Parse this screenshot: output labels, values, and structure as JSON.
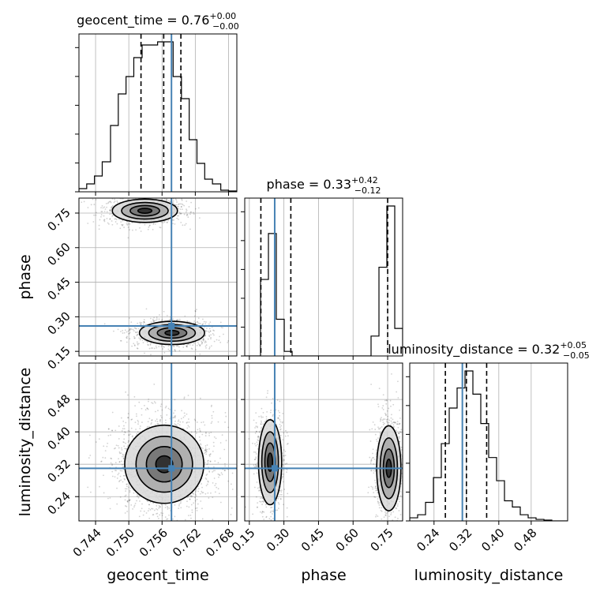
{
  "chart_data": {
    "type": "corner",
    "grid": true,
    "truth_color": "#4682b4",
    "parameters": [
      {
        "name": "geocent_time",
        "label": "geocent_time",
        "range": [
          0.741,
          0.7695
        ],
        "ticks": [
          "0.744",
          "0.750",
          "0.756",
          "0.762",
          "0.768"
        ],
        "tick_values": [
          0.744,
          0.75,
          0.756,
          0.762,
          0.768
        ],
        "truth": 0.7577
      },
      {
        "name": "phase",
        "label": "phase",
        "range": [
          0.13,
          0.815
        ],
        "ticks": [
          "0.15",
          "0.30",
          "0.45",
          "0.60",
          "0.75"
        ],
        "tick_values": [
          0.15,
          0.3,
          0.45,
          0.6,
          0.75
        ],
        "truth": 0.26
      },
      {
        "name": "luminosity_distance",
        "label": "luminosity_distance",
        "range": [
          0.18,
          0.57
        ],
        "ticks": [
          "0.24",
          "0.32",
          "0.40",
          "0.48"
        ],
        "tick_values": [
          0.24,
          0.32,
          0.4,
          0.48
        ],
        "truth": 0.31
      }
    ],
    "marginals": [
      {
        "param": "geocent_time",
        "title_prefix": "geocent_time = 0.76",
        "title_sup": "+0.00",
        "title_sub": "−0.00",
        "quantiles": [
          0.7522,
          0.7563,
          0.7594
        ],
        "bins": [
          0.741,
          0.7424,
          0.7438,
          0.7452,
          0.7467,
          0.7481,
          0.7495,
          0.7509,
          0.7524,
          0.7538,
          0.7552,
          0.7566,
          0.758,
          0.7595,
          0.7609,
          0.7623,
          0.7637,
          0.7651,
          0.7666,
          0.768,
          0.7694
        ],
        "counts": [
          0.02,
          0.05,
          0.1,
          0.19,
          0.42,
          0.62,
          0.73,
          0.85,
          0.93,
          0.93,
          0.95,
          0.95,
          0.73,
          0.59,
          0.33,
          0.18,
          0.08,
          0.05,
          0.01,
          0.005
        ]
      },
      {
        "param": "phase",
        "title_prefix": "phase = 0.33",
        "title_sup": "+0.42",
        "title_sub": "−0.12",
        "quantiles": [
          0.2,
          0.33,
          0.75
        ],
        "bins": [
          0.13,
          0.1643,
          0.1985,
          0.2328,
          0.267,
          0.3013,
          0.3355,
          0.3698,
          0.404,
          0.4383,
          0.4725,
          0.5068,
          0.541,
          0.5753,
          0.6095,
          0.6438,
          0.678,
          0.7123,
          0.7465,
          0.7808,
          0.815
        ],
        "counts": [
          0.0,
          0.0,
          0.5,
          0.8,
          0.24,
          0.03,
          0.0,
          0.0,
          0.0,
          0.0,
          0.0,
          0.0,
          0.0,
          0.0,
          0.0,
          0.0,
          0.13,
          0.58,
          0.98,
          0.18
        ]
      },
      {
        "param": "luminosity_distance",
        "title_prefix": "luminosity_distance = 0.32",
        "title_sup": "+0.05",
        "title_sub": "−0.05",
        "quantiles": [
          0.268,
          0.32,
          0.37
        ],
        "bins": [
          0.18,
          0.1995,
          0.219,
          0.2385,
          0.258,
          0.2775,
          0.297,
          0.3165,
          0.336,
          0.3555,
          0.375,
          0.3945,
          0.414,
          0.4335,
          0.453,
          0.4725,
          0.492,
          0.5115,
          0.531,
          0.5505,
          0.57
        ],
        "counts": [
          0.02,
          0.04,
          0.12,
          0.28,
          0.5,
          0.73,
          0.86,
          0.97,
          0.82,
          0.63,
          0.41,
          0.26,
          0.13,
          0.09,
          0.04,
          0.02,
          0.01,
          0.005,
          0.0,
          0.0
        ]
      }
    ],
    "joint": [
      {
        "x": "geocent_time",
        "y": "phase",
        "modes": [
          {
            "cx": 0.7529,
            "cy": 0.76,
            "sx": 0.0028,
            "sy": 0.024,
            "weight": 0.48
          },
          {
            "cx": 0.7578,
            "cy": 0.23,
            "sx": 0.0028,
            "sy": 0.024,
            "weight": 0.52
          }
        ]
      },
      {
        "x": "geocent_time",
        "y": "luminosity_distance",
        "modes": [
          {
            "cx": 0.7564,
            "cy": 0.32,
            "sx": 0.0034,
            "sy": 0.046,
            "weight": 1.0
          }
        ]
      },
      {
        "x": "phase",
        "y": "luminosity_distance",
        "modes": [
          {
            "cx": 0.24,
            "cy": 0.325,
            "sx": 0.024,
            "sy": 0.05,
            "weight": 0.45
          },
          {
            "cx": 0.755,
            "cy": 0.31,
            "sx": 0.025,
            "sy": 0.05,
            "weight": 0.55
          }
        ]
      }
    ]
  }
}
